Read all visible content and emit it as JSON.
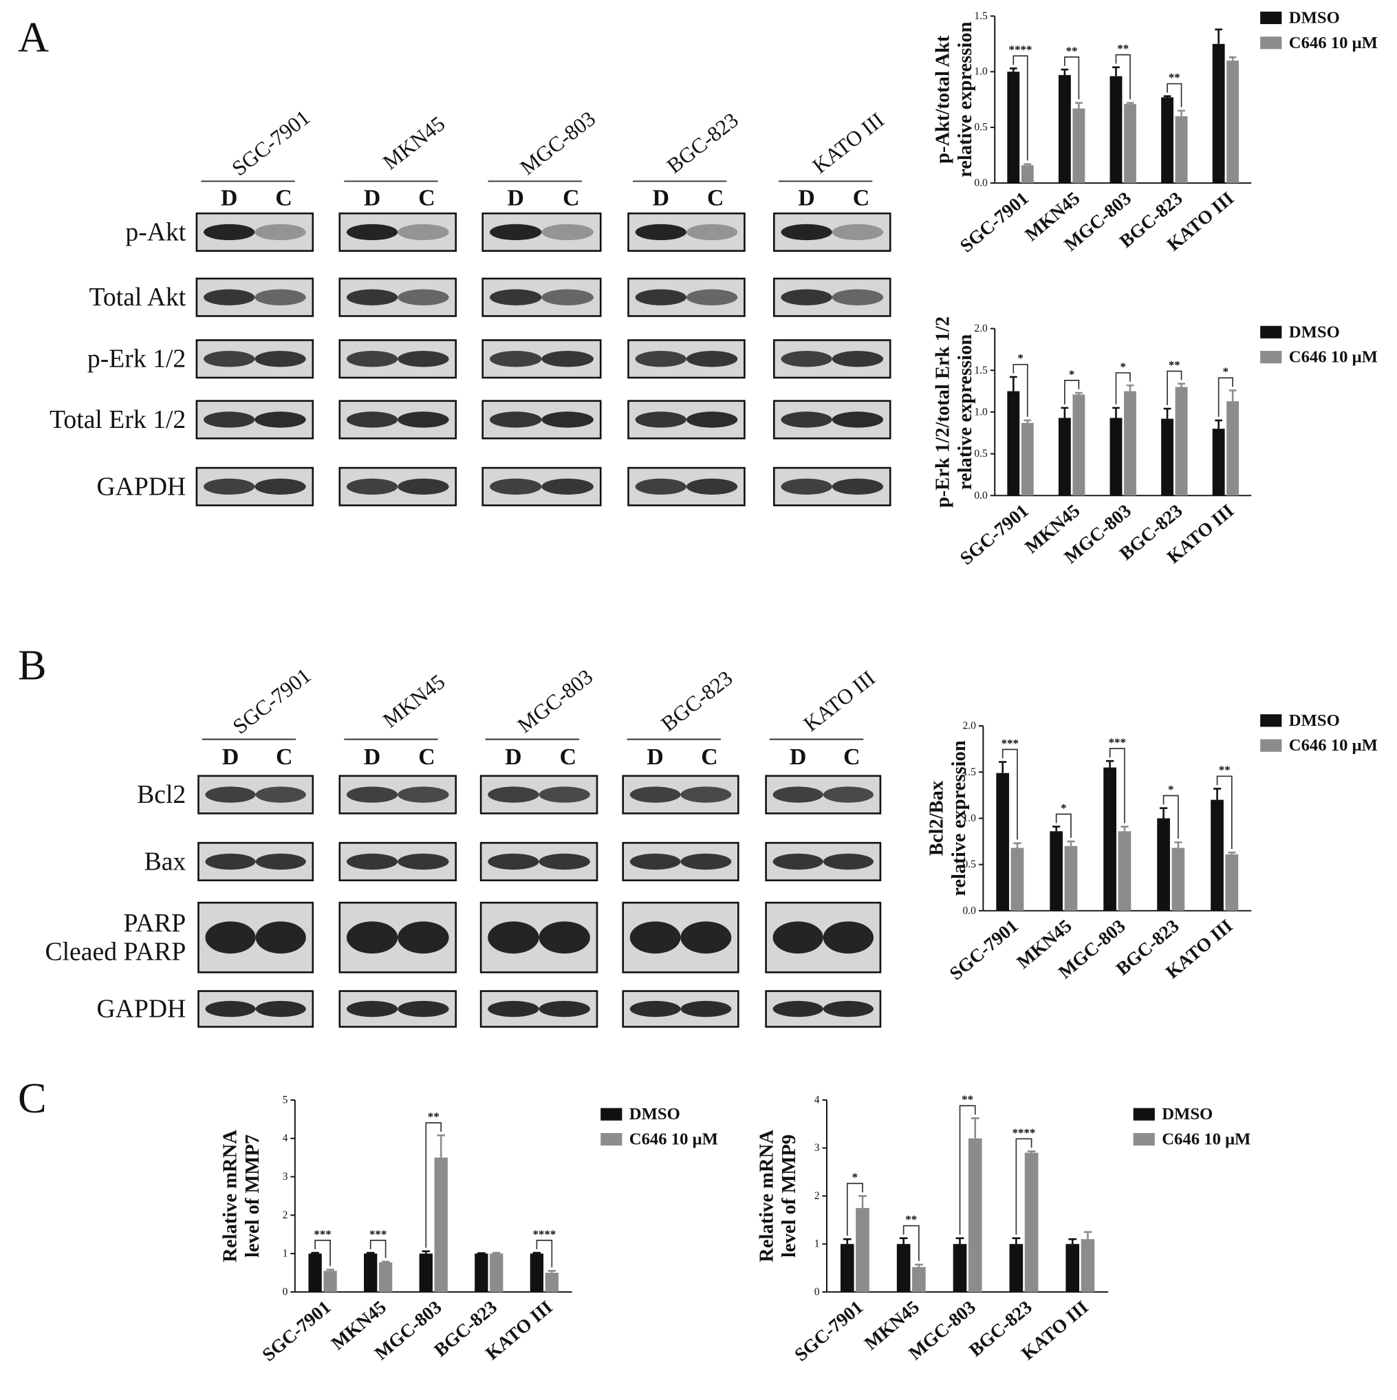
{
  "panels": [
    "A",
    "B",
    "C"
  ],
  "blots": {
    "A": {
      "cell_lines": [
        "SGC-7901",
        "MKN45",
        "MGC-803",
        "BGC-823",
        "KATO III"
      ],
      "lanes": [
        "D",
        "C"
      ],
      "proteins": [
        [
          "p-Akt"
        ],
        [
          "Total Akt"
        ],
        [
          "p-Erk 1/2"
        ],
        [
          "Total Erk 1/2"
        ],
        [
          "GAPDH"
        ]
      ]
    },
    "B": {
      "cell_lines": [
        "SGC-7901",
        "MKN45",
        "MGC-803",
        "BGC-823",
        "KATO III"
      ],
      "lanes": [
        "D",
        "C"
      ],
      "proteins": [
        [
          "Bcl2"
        ],
        [
          "Bax"
        ],
        [
          "PARP",
          "Cleaed PARP"
        ],
        [
          "GAPDH"
        ]
      ]
    }
  },
  "chart_data": [
    {
      "type": "bar",
      "ylabel": [
        "p-Akt/total Akt",
        "relative expression"
      ],
      "categories": [
        "SGC-7901",
        "MKN45",
        "MGC-803",
        "BGC-823",
        "KATO III"
      ],
      "series": [
        {
          "name": "DMSO",
          "color": "#111111",
          "values": [
            1.0,
            0.97,
            0.96,
            0.77,
            1.25
          ],
          "errors": [
            0.03,
            0.05,
            0.08,
            0.01,
            0.13
          ]
        },
        {
          "name": "C646 10 μM",
          "color": "#8c8c8c",
          "values": [
            0.16,
            0.67,
            0.71,
            0.6,
            1.1
          ],
          "errors": [
            0.01,
            0.05,
            0.01,
            0.05,
            0.03
          ]
        }
      ],
      "significance": [
        "****",
        "**",
        "**",
        "**",
        null
      ],
      "ylim": [
        0,
        1.5
      ],
      "yticks": [
        {
          "value": 0,
          "label": "0.0"
        },
        0.5,
        {
          "value": 1,
          "label": "1.0"
        },
        1.5
      ]
    },
    {
      "type": "bar",
      "ylabel": [
        "p-Erk 1/2/total Erk 1/2",
        "relative expression"
      ],
      "categories": [
        "SGC-7901",
        "MKN45",
        "MGC-803",
        "BGC-823",
        "KATO III"
      ],
      "series": [
        {
          "name": "DMSO",
          "color": "#111111",
          "values": [
            1.25,
            0.93,
            0.93,
            0.92,
            0.8
          ],
          "errors": [
            0.17,
            0.12,
            0.12,
            0.12,
            0.1
          ]
        },
        {
          "name": "C646 10 μM",
          "color": "#8c8c8c",
          "values": [
            0.87,
            1.21,
            1.25,
            1.3,
            1.13
          ],
          "errors": [
            0.03,
            0.02,
            0.07,
            0.04,
            0.13
          ]
        }
      ],
      "significance": [
        "*",
        "*",
        "*",
        "**",
        "*"
      ],
      "ylim": [
        0,
        2
      ],
      "yticks": [
        {
          "value": 0,
          "label": "0.0"
        },
        0.5,
        {
          "value": 1,
          "label": "1.0"
        },
        1.5,
        {
          "value": 2,
          "label": "2.0"
        }
      ]
    },
    {
      "type": "bar",
      "ylabel": [
        "Bcl2/Bax",
        "relative expression"
      ],
      "categories": [
        "SGC-7901",
        "MKN45",
        "MGC-803",
        "BGC-823",
        "KATO III"
      ],
      "series": [
        {
          "name": "DMSO",
          "color": "#111111",
          "values": [
            1.49,
            0.86,
            1.55,
            1.0,
            1.2
          ],
          "errors": [
            0.12,
            0.05,
            0.07,
            0.11,
            0.12
          ]
        },
        {
          "name": "C646 10 μM",
          "color": "#8c8c8c",
          "values": [
            0.68,
            0.7,
            0.86,
            0.68,
            0.61
          ],
          "errors": [
            0.05,
            0.05,
            0.05,
            0.06,
            0.02
          ]
        }
      ],
      "significance": [
        "***",
        "*",
        "***",
        "*",
        "**"
      ],
      "ylim": [
        0,
        2
      ],
      "yticks": [
        {
          "value": 0,
          "label": "0.0"
        },
        0.5,
        {
          "value": 1,
          "label": "1.0"
        },
        1.5,
        {
          "value": 2,
          "label": "2.0"
        }
      ]
    },
    {
      "type": "bar",
      "ylabel": [
        "Relative mRNA",
        "level of MMP7"
      ],
      "categories": [
        "SGC-7901",
        "MKN45",
        "MGC-803",
        "BGC-823",
        "KATO III"
      ],
      "series": [
        {
          "name": "DMSO",
          "color": "#111111",
          "values": [
            1,
            1,
            1,
            1,
            1
          ],
          "errors": [
            0.02,
            0.02,
            0.06,
            0.01,
            0.02
          ]
        },
        {
          "name": "C646 10 μM",
          "color": "#8c8c8c",
          "values": [
            0.55,
            0.77,
            3.5,
            1.0,
            0.5
          ],
          "errors": [
            0.03,
            0.02,
            0.58,
            0.02,
            0.05
          ]
        }
      ],
      "significance": [
        "***",
        "***",
        "**",
        null,
        "****"
      ],
      "ylim": [
        0,
        5
      ],
      "yticks": [
        0,
        1,
        2,
        3,
        4,
        5
      ]
    },
    {
      "type": "bar",
      "ylabel": [
        "Relative mRNA",
        "level of MMP9"
      ],
      "categories": [
        "SGC-7901",
        "MKN45",
        "MGC-803",
        "BGC-823",
        "KATO III"
      ],
      "series": [
        {
          "name": "DMSO",
          "color": "#111111",
          "values": [
            1,
            1,
            1,
            1,
            1
          ],
          "errors": [
            0.1,
            0.12,
            0.12,
            0.12,
            0.1
          ]
        },
        {
          "name": "C646 10 μM",
          "color": "#8c8c8c",
          "values": [
            1.75,
            0.52,
            3.2,
            2.9,
            1.1
          ],
          "errors": [
            0.25,
            0.05,
            0.42,
            0.03,
            0.15
          ]
        }
      ],
      "significance": [
        "*",
        "**",
        "**",
        "****",
        null
      ],
      "ylim": [
        0,
        4
      ],
      "yticks": [
        0,
        1,
        2,
        3,
        4
      ]
    }
  ]
}
